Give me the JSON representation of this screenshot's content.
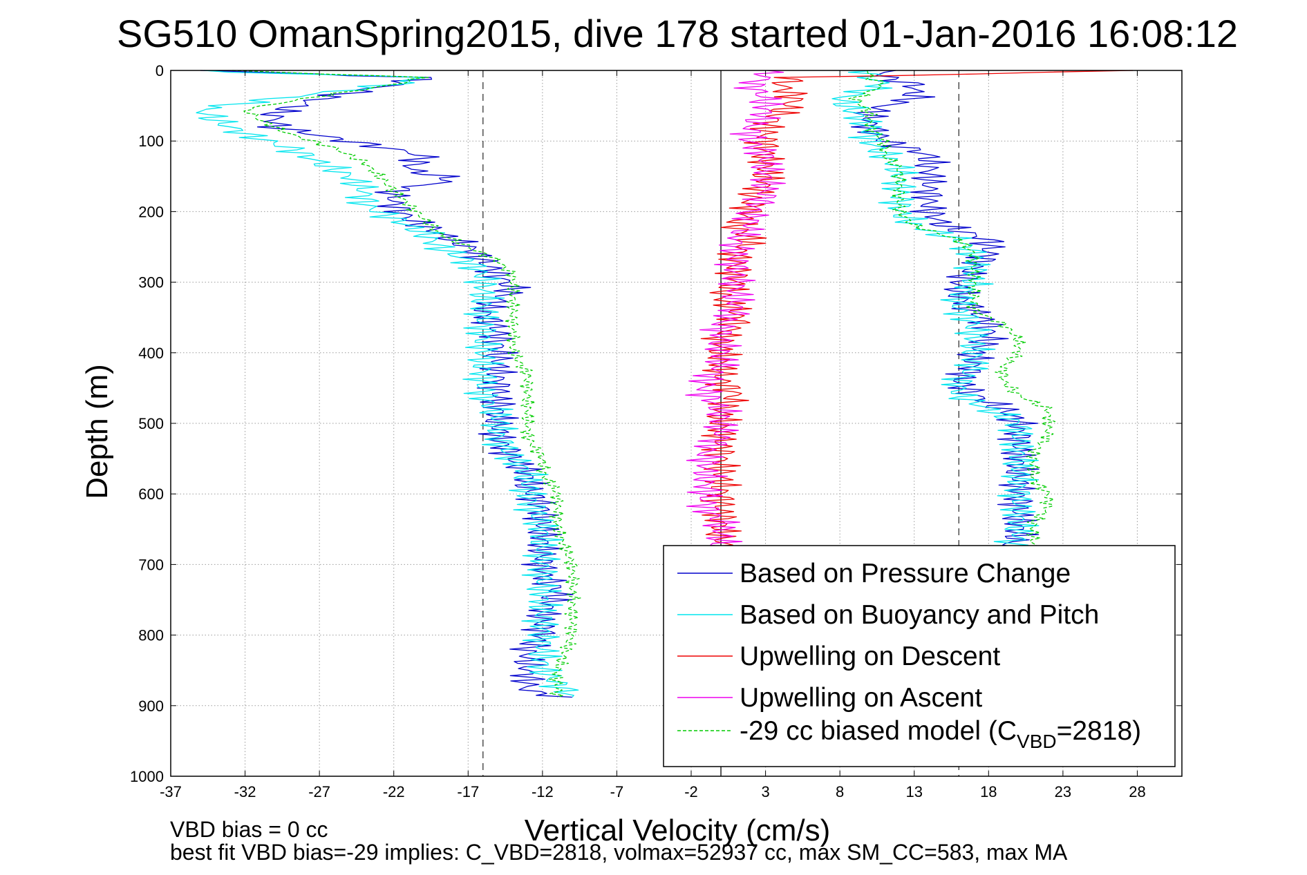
{
  "chart_data": {
    "type": "line",
    "title": "SG510 OmanSpring2015, dive 178 started 01-Jan-2016 16:08:12",
    "xlabel": "Vertical Velocity (cm/s)",
    "ylabel": "Depth (m)",
    "xlim": [
      -37,
      31
    ],
    "ylim": [
      0,
      1000
    ],
    "y_reversed": true,
    "x_ticks": [
      "-37",
      "-32",
      "-27",
      "-22",
      "-17",
      "-12",
      "-7",
      "-2",
      "3",
      "8",
      "13",
      "18",
      "23",
      "28"
    ],
    "y_ticks": [
      "0",
      "100",
      "200",
      "300",
      "400",
      "500",
      "600",
      "700",
      "800",
      "900",
      "1000"
    ],
    "grid": true,
    "legend_position": "bottom-right",
    "reference_lines": {
      "zero": 0,
      "dashed": [
        -16,
        16
      ]
    },
    "series": [
      {
        "name": "Based on Pressure Change",
        "color": "#0000cc",
        "style": "solid",
        "segments": [
          {
            "depth": [
              0,
              10,
              20,
              40,
              60,
              80,
              100,
              120,
              140,
              155,
              170,
              190,
              210,
              230,
              250,
              270,
              290,
              310,
              340,
              370,
              400,
              430,
              460,
              490,
              520,
              550,
              570,
              590,
              620,
              650,
              680,
              710,
              740,
              770,
              800,
              820,
              850,
              880,
              888
            ],
            "value": [
              -35,
              -20,
              -22,
              -27,
              -30,
              -30,
              -25,
              -20,
              -21,
              -18,
              -22,
              -22,
              -21,
              -19,
              -17,
              -16,
              -15,
              -14,
              -16,
              -15,
              -15,
              -15,
              -15,
              -15,
              -15,
              -14,
              -13,
              -13,
              -12,
              -12,
              -12,
              -12,
              -11,
              -12,
              -12,
              -13,
              -13,
              -13,
              -10
            ]
          },
          {
            "depth": [
              0,
              10,
              20,
              30,
              40,
              50,
              60,
              80,
              100,
              120,
              140,
              160,
              180,
              200,
              220,
              240,
              260,
              280,
              300,
              320,
              340,
              360,
              380,
              400,
              420,
              440,
              460,
              480,
              500,
              520,
              540,
              560,
              580,
              600,
              620,
              640,
              660,
              680
            ],
            "value": [
              11,
              11,
              13,
              13,
              13,
              11,
              10,
              10,
              11,
              14,
              14,
              14,
              14,
              14,
              15,
              18,
              18,
              17,
              16,
              16,
              17,
              18,
              18,
              17,
              17,
              16,
              17,
              19,
              20,
              20,
              20,
              20,
              20,
              20,
              20,
              20,
              20,
              19
            ]
          }
        ]
      },
      {
        "name": "Based on Buoyancy and Pitch",
        "color": "#00e5ee",
        "style": "solid",
        "segments": [
          {
            "depth": [
              0,
              10,
              20,
              40,
              55,
              70,
              90,
              110,
              130,
              150,
              170,
              190,
              210,
              230,
              250,
              270,
              290,
              310,
              340,
              370,
              400,
              430,
              460,
              490,
              520,
              550,
              570,
              600,
              650,
              700,
              750,
              800,
              850,
              888
            ],
            "value": [
              -36,
              -20,
              -22,
              -30,
              -35,
              -34,
              -32,
              -29,
              -27,
              -25,
              -24,
              -24,
              -22,
              -20,
              -19,
              -17,
              -16,
              -16,
              -16,
              -16,
              -16,
              -16,
              -16,
              -15,
              -15,
              -14,
              -13,
              -13,
              -12,
              -12,
              -12,
              -12,
              -12,
              -10
            ]
          },
          {
            "depth": [
              0,
              10,
              20,
              40,
              60,
              80,
              100,
              120,
              140,
              160,
              180,
              200,
              220,
              240,
              260,
              280,
              300,
              320,
              340,
              360,
              380,
              400,
              420,
              440,
              460,
              480,
              500,
              520,
              540,
              560,
              580,
              600,
              620,
              640,
              660,
              680
            ],
            "value": [
              10,
              10,
              11,
              8,
              9,
              10,
              10,
              11,
              12,
              12,
              12,
              12,
              13,
              16,
              17,
              17,
              17,
              16,
              16,
              17,
              17,
              17,
              17,
              16,
              16,
              18,
              20,
              20,
              20,
              20,
              20,
              20,
              20,
              20,
              20,
              19
            ]
          }
        ]
      },
      {
        "name": "Upwelling on Descent",
        "color": "#ee0000",
        "style": "solid",
        "segments": [
          {
            "depth": [
              0,
              10,
              20,
              40,
              60,
              80,
              100,
              120,
              140,
              160,
              180,
              200,
              220,
              240,
              260,
              280,
              300,
              320,
              340,
              360,
              380,
              400,
              420,
              440,
              460,
              480,
              500,
              520,
              540,
              560,
              580,
              600,
              620,
              640,
              660,
              680
            ],
            "value": [
              28,
              5,
              4,
              5,
              4,
              3,
              3,
              3,
              3,
              3,
              2,
              2,
              1,
              2,
              1,
              1,
              1,
              0,
              1,
              1,
              0,
              0,
              0,
              0,
              1,
              0,
              0,
              0,
              0,
              0,
              0,
              0,
              0,
              0,
              0,
              0
            ]
          }
        ]
      },
      {
        "name": "Upwelling on Ascent",
        "color": "#ee00ee",
        "style": "solid",
        "segments": [
          {
            "depth": [
              0,
              10,
              20,
              40,
              60,
              80,
              100,
              120,
              140,
              160,
              180,
              200,
              220,
              240,
              260,
              280,
              300,
              320,
              340,
              360,
              380,
              400,
              420,
              440,
              460,
              480,
              500,
              520,
              540,
              560,
              580,
              600,
              620,
              640,
              660,
              680
            ],
            "value": [
              3,
              3,
              2,
              3,
              3,
              2,
              2,
              3,
              3,
              3,
              3,
              2,
              2,
              1,
              1,
              1,
              1,
              1,
              1,
              0,
              0,
              0,
              0,
              -1,
              -1,
              0,
              0,
              0,
              -1,
              -1,
              -1,
              -1,
              -1,
              0,
              0,
              0
            ]
          }
        ]
      },
      {
        "name": "-29 cc biased model (C",
        "name_sub": "VBD",
        "name_tail": "=2818)",
        "color": "#00cc00",
        "style": "dashed",
        "segments": [
          {
            "depth": [
              0,
              10,
              20,
              40,
              55,
              70,
              90,
              110,
              130,
              150,
              170,
              190,
              210,
              230,
              250,
              270,
              290,
              310,
              340,
              370,
              400,
              430,
              460,
              490,
              520,
              550,
              570,
              600,
              650,
              700,
              750,
              800,
              850,
              888
            ],
            "value": [
              -33,
              -20,
              -22,
              -28,
              -32,
              -31,
              -29,
              -26,
              -24,
              -23,
              -22,
              -21,
              -20,
              -19,
              -17,
              -15,
              -14,
              -14,
              -14,
              -14,
              -14,
              -13,
              -13,
              -13,
              -13,
              -12,
              -12,
              -11,
              -11,
              -10,
              -10,
              -10,
              -11,
              -11
            ]
          },
          {
            "depth": [
              0,
              10,
              20,
              40,
              60,
              80,
              100,
              120,
              140,
              160,
              180,
              200,
              220,
              240,
              260,
              280,
              300,
              320,
              340,
              360,
              380,
              400,
              420,
              440,
              460,
              480,
              500,
              520,
              540,
              560,
              580,
              600,
              620,
              640,
              660,
              680
            ],
            "value": [
              10,
              10,
              11,
              9,
              10,
              10,
              11,
              11,
              12,
              12,
              12,
              12,
              13,
              16,
              17,
              17,
              17,
              17,
              17,
              19,
              20,
              20,
              19,
              19,
              20,
              22,
              22,
              22,
              21,
              21,
              21,
              22,
              22,
              21,
              21,
              21
            ]
          }
        ]
      }
    ],
    "annotations": [
      "VBD bias = 0 cc",
      "best fit VBD bias=-29 implies: C_VBD=2818, volmax=52937 cc, max SM_CC=583, max MA"
    ]
  }
}
